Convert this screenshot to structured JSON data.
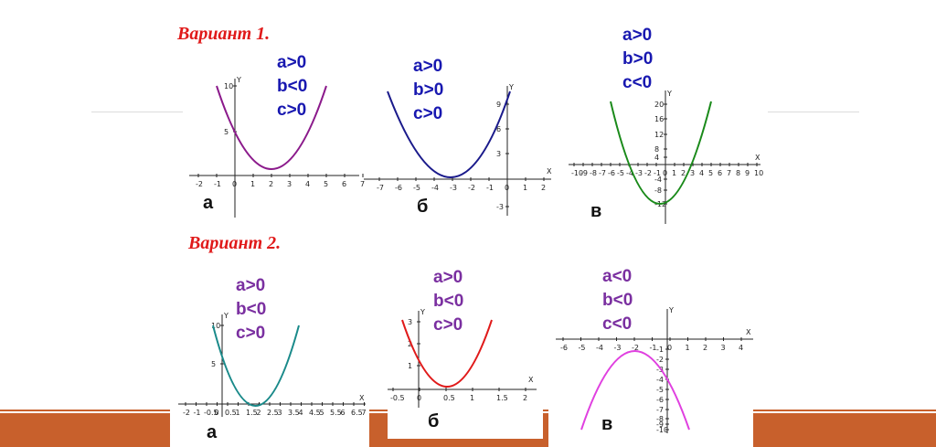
{
  "variant1": {
    "title": "Вариант 1.",
    "graphs": [
      {
        "letter": "а",
        "conditions": [
          "a>0",
          "b<0",
          "c>0"
        ],
        "color": "#8b1a8b",
        "xticks": [
          "-2",
          "-1",
          "0",
          "1",
          "2",
          "3",
          "4",
          "5",
          "6",
          "7"
        ],
        "yticks": [
          "10",
          "5"
        ],
        "axis_y": "Y"
      },
      {
        "letter": "б",
        "conditions": [
          "a>0",
          "b>0",
          "c>0"
        ],
        "color": "#1a1a8b",
        "xticks": [
          "-7",
          "-6",
          "-5",
          "-4",
          "-3",
          "-2",
          "-1",
          "0",
          "1",
          "2"
        ],
        "yticks": [
          "9",
          "6",
          "3",
          "-3"
        ],
        "axis_y": "Y",
        "axis_x": "X"
      },
      {
        "letter": "в",
        "conditions": [
          "a>0",
          "b>0",
          "c<0"
        ],
        "color": "#1a8a1a",
        "xticks": [
          "-10",
          "-9",
          "-8",
          "-7",
          "-6",
          "-5",
          "-4",
          "-3",
          "-2",
          "-1",
          "0",
          "1",
          "2",
          "3",
          "4",
          "5",
          "6",
          "7",
          "8",
          "9",
          "10"
        ],
        "yticks": [
          "20",
          "16",
          "12",
          "8",
          "4",
          "-4",
          "-8",
          "-12"
        ],
        "axis_y": "Y",
        "axis_x": "X"
      }
    ]
  },
  "variant2": {
    "title": "Вариант 2.",
    "graphs": [
      {
        "letter": "а",
        "conditions": [
          "a>0",
          "b<0",
          "c>0"
        ],
        "color": "#1a8a8a",
        "xticks": [
          "-2",
          "-1",
          "-0.5",
          "0",
          "0.5",
          "1",
          "1.5",
          "2",
          "2.5",
          "3",
          "3.5",
          "4",
          "4.5",
          "5",
          "5.5",
          "6",
          "6.5",
          "7"
        ],
        "yticks": [
          "10",
          "5"
        ],
        "axis_y": "Y",
        "axis_x": "X"
      },
      {
        "letter": "б",
        "conditions": [
          "a>0",
          "b<0",
          "c>0"
        ],
        "color": "#e01a1a",
        "xticks": [
          "-0.5",
          "0",
          "0.5",
          "1",
          "1.5",
          "2"
        ],
        "yticks": [
          "3",
          "2",
          "1"
        ],
        "axis_y": "Y",
        "axis_x": "X"
      },
      {
        "letter": "в",
        "conditions": [
          "a<0",
          "b<0",
          "c<0"
        ],
        "color": "#e040e0",
        "xticks": [
          "-6",
          "-5",
          "-4",
          "-3",
          "-2",
          "-1",
          "0",
          "1",
          "2",
          "3",
          "4"
        ],
        "yticks": [
          "-1",
          "-2",
          "-3",
          "-4",
          "-5",
          "-6",
          "-7",
          "-8",
          "-9",
          "-10"
        ],
        "axis_y": "Y",
        "axis_x": "X"
      }
    ]
  }
}
